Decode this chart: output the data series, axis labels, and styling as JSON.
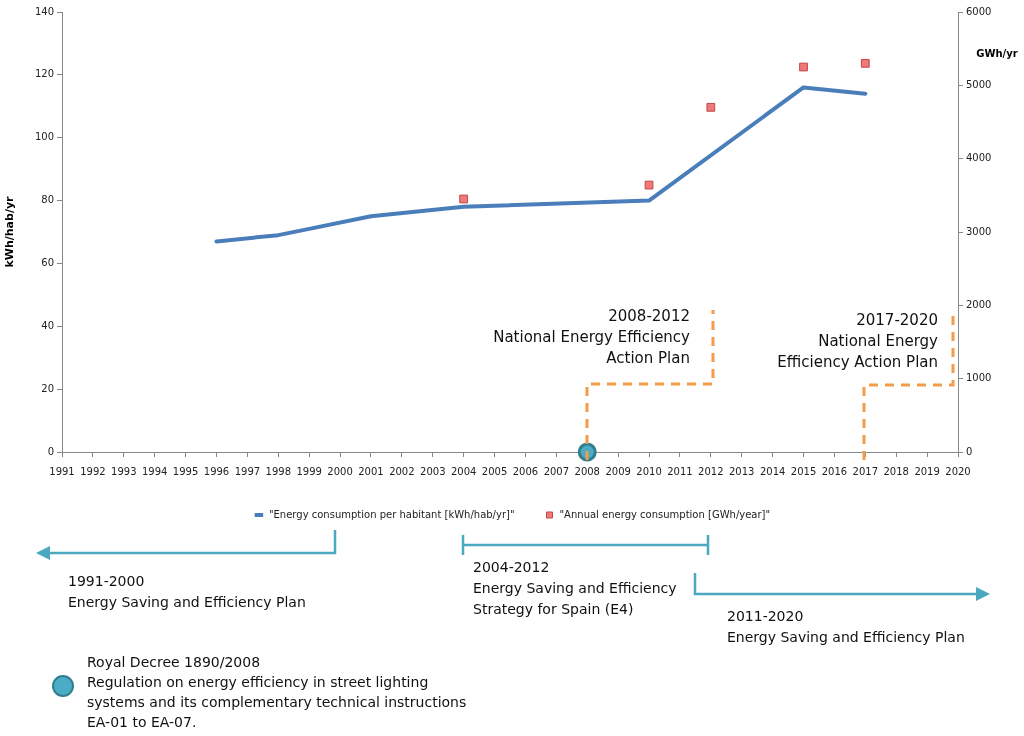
{
  "chart_data": {
    "type": "line",
    "ylabel": "kWh/hab/yr",
    "y2label": "GWh/yr",
    "xlim": [
      1991,
      2020
    ],
    "xticks": [
      1991,
      1992,
      1993,
      1994,
      1995,
      1996,
      1997,
      1998,
      1999,
      2000,
      2001,
      2002,
      2003,
      2004,
      2005,
      2006,
      2007,
      2008,
      2009,
      2010,
      2011,
      2012,
      2013,
      2014,
      2015,
      2016,
      2017,
      2018,
      2019,
      2020
    ],
    "ylim": [
      0,
      140
    ],
    "yticks": [
      0,
      20,
      40,
      60,
      80,
      100,
      120,
      140
    ],
    "y2lim": [
      0,
      6000
    ],
    "y2ticks": [
      0,
      1000,
      2000,
      3000,
      4000,
      5000,
      6000
    ],
    "grid": false,
    "legend": "bottom",
    "series": [
      {
        "name": "\"Energy consumption per habitant [kWh/hab/yr]\"",
        "color": "#4a7ebb",
        "marker": "none",
        "x": [
          1996,
          1998,
          1999,
          2001,
          2004,
          2010,
          2015,
          2017
        ],
        "values": [
          67,
          69,
          71,
          75,
          78,
          80,
          116,
          114
        ]
      },
      {
        "name": "\"Annual energy consumption [GWh/year]\"",
        "type": "scatter",
        "axis": "y2",
        "color": "#f07878",
        "marker": "square",
        "x": [
          2004,
          2010,
          2012,
          2015,
          2017
        ],
        "values": [
          3450,
          3640,
          4700,
          5250,
          5300
        ]
      },
      {
        "type": "scatter",
        "color": "#4bacc6",
        "marker": "circle",
        "x": [
          2008
        ],
        "values": [
          0
        ]
      }
    ],
    "annotations": [
      "2008-2012\nNational Energy Efficiency\nAction Plan",
      "2017-2020\nNational Energy\nEfficiency Action Plan",
      "1991-2000\nEnergy Saving and Efficiency Plan",
      "2004-2012\nEnergy Saving and Efficiency\nStrategy for Spain (E4)",
      "2011-2020\nEnergy Saving and Efficiency Plan",
      "Royal Decree 1890/2008\nRegulation on energy efficiency in street lighting\nsystems and its complementary technical instructions\nEA-01 to EA-07."
    ]
  }
}
